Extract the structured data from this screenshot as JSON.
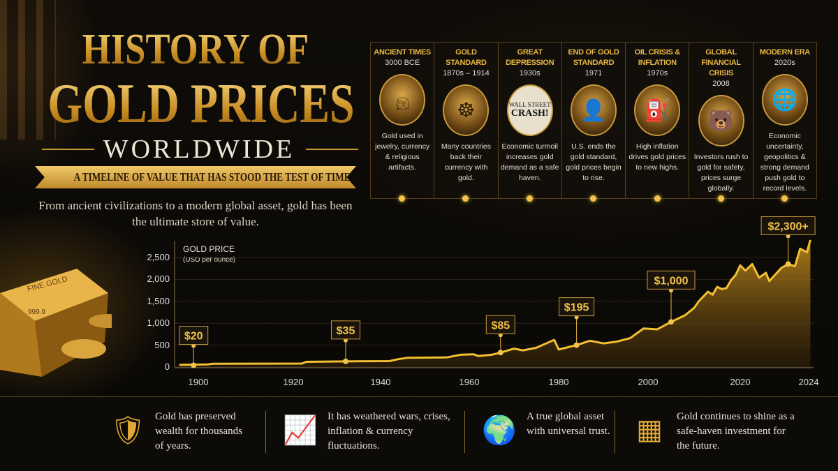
{
  "header": {
    "title_line1": "HISTORY OF",
    "title_line2": "GOLD PRICES",
    "title_line3": "WORLDWIDE",
    "banner": "A TIMELINE OF VALUE THAT HAS STOOD THE TEST OF TIME",
    "intro": "From ancient civilizations to a modern global asset, gold has been the ultimate store of value."
  },
  "gold_bar_stamp": "FINE GOLD 999.9",
  "timeline": [
    {
      "title": "ANCIENT TIMES",
      "date": "3000 BCE",
      "icon": "pharaoh-icon",
      "text": "Gold used in jewelry, currency & religious artifacts."
    },
    {
      "title": "GOLD STANDARD",
      "date": "1870s – 1914",
      "icon": "vault-icon",
      "text": "Many countries back their currency with gold."
    },
    {
      "title": "GREAT DEPRESSION",
      "date": "1930s",
      "icon": "newspaper-crash-icon",
      "text": "Economic turmoil increases gold demand as a safe haven."
    },
    {
      "title": "END OF GOLD STANDARD",
      "date": "1971",
      "icon": "president-portrait-icon",
      "text": "U.S. ends the gold standard, gold prices begin to rise."
    },
    {
      "title": "OIL CRISIS & INFLATION",
      "date": "1970s",
      "icon": "oil-pump-icon",
      "text": "High inflation drives gold prices to new highs."
    },
    {
      "title": "GLOBAL FINANCIAL CRISIS",
      "date": "2008",
      "icon": "bear-icon",
      "text": "Investors rush to gold for safety, prices surge globally."
    },
    {
      "title": "MODERN ERA",
      "date": "2020s",
      "icon": "globe-network-icon",
      "text": "Economic uncertainty, geopolitics & strong demand push gold to record levels."
    }
  ],
  "newspaper": {
    "line1": "WALL STREET",
    "line2": "CRASH!"
  },
  "chart_data": {
    "type": "area",
    "title": "GOLD PRICE",
    "subtitle": "(USD per ounce)",
    "color": "#f2c030",
    "x_ticks": [
      1900,
      1920,
      1940,
      1960,
      1980,
      2000,
      2020,
      2024
    ],
    "y_ticks": [
      0,
      500,
      1000,
      1500,
      2000,
      2500
    ],
    "y_tick_labels": [
      "0",
      "500",
      "1,000",
      "1,500",
      "2,000",
      "2,500"
    ],
    "ylim": [
      0,
      2900
    ],
    "grid": true,
    "points": [
      [
        1896,
        50
      ],
      [
        1902,
        60
      ],
      [
        1903,
        75
      ],
      [
        1922,
        80
      ],
      [
        1923,
        120
      ],
      [
        1932,
        130
      ],
      [
        1942,
        135
      ],
      [
        1944,
        180
      ],
      [
        1946,
        210
      ],
      [
        1955,
        220
      ],
      [
        1958,
        280
      ],
      [
        1961,
        290
      ],
      [
        1962,
        250
      ],
      [
        1965,
        280
      ],
      [
        1967,
        330
      ],
      [
        1970,
        420
      ],
      [
        1972,
        380
      ],
      [
        1975,
        440
      ],
      [
        1979,
        620
      ],
      [
        1980,
        400
      ],
      [
        1982,
        450
      ],
      [
        1984,
        500
      ],
      [
        1987,
        600
      ],
      [
        1990,
        540
      ],
      [
        1993,
        580
      ],
      [
        1996,
        660
      ],
      [
        1999,
        880
      ],
      [
        2002,
        860
      ],
      [
        2005,
        1030
      ],
      [
        2008,
        1180
      ],
      [
        2010,
        1350
      ],
      [
        2011,
        1500
      ],
      [
        2013,
        1720
      ],
      [
        2014,
        1650
      ],
      [
        2015,
        1830
      ],
      [
        2016,
        1780
      ],
      [
        2017,
        1800
      ],
      [
        2018,
        1980
      ],
      [
        2019,
        2100
      ],
      [
        2020,
        2320
      ],
      [
        2020.3,
        2200
      ],
      [
        2020.7,
        2350
      ],
      [
        2021.1,
        2040
      ],
      [
        2021.5,
        2150
      ],
      [
        2021.7,
        1960
      ],
      [
        2022.4,
        2260
      ],
      [
        2022.8,
        2350
      ],
      [
        2023.2,
        2300
      ],
      [
        2023.5,
        2700
      ],
      [
        2023.9,
        2620
      ],
      [
        2024.1,
        2900
      ]
    ],
    "annotations": [
      {
        "year": 1899,
        "value": 40,
        "label": "$20"
      },
      {
        "year": 1932,
        "value": 130,
        "label": "$35"
      },
      {
        "year": 1967,
        "value": 330,
        "label": "$85"
      },
      {
        "year": 1984,
        "value": 500,
        "label": "$195"
      },
      {
        "year": 2005,
        "value": 1030,
        "label": "$1,000"
      },
      {
        "year": 2022.8,
        "value": 2350,
        "label": "$2,300+"
      }
    ]
  },
  "features": [
    {
      "icon": "shield-icon",
      "text": "Gold has preserved wealth for thousands of years."
    },
    {
      "icon": "growth-chart-icon",
      "text": "It has weathered wars, crises, inflation & currency fluctuations."
    },
    {
      "icon": "globe-icon",
      "text": "A true global asset with universal trust."
    },
    {
      "icon": "gold-bars-icon",
      "text": "Gold continues to shine as a safe-haven investment for the future."
    }
  ]
}
